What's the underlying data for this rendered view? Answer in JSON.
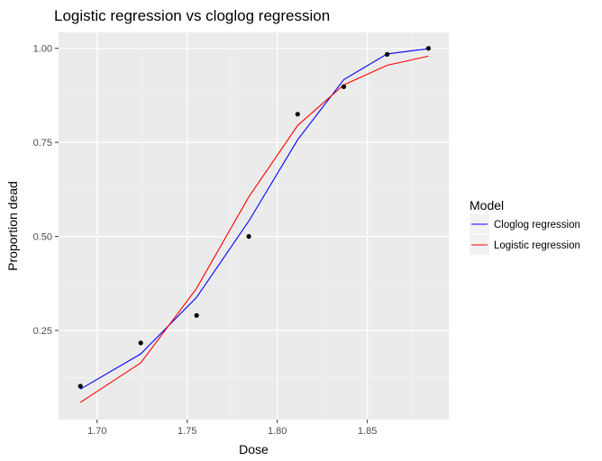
{
  "chart_data": {
    "type": "line",
    "title": "Logistic regression vs cloglog regression",
    "xlabel": "Dose",
    "ylabel": "Proportion dead",
    "xlim": [
      1.6786,
      1.8952
    ],
    "ylim": [
      0.0132,
      1.0423
    ],
    "x_ticks": [
      1.7,
      1.75,
      1.8,
      1.85
    ],
    "x_tick_labels": [
      "1.70",
      "1.75",
      "1.80",
      "1.85"
    ],
    "y_ticks": [
      0.25,
      0.5,
      0.75,
      1.0
    ],
    "y_tick_labels": [
      "0.25",
      "0.50",
      "0.75",
      "1.00"
    ],
    "grid": true,
    "background": "#ebebeb",
    "legend": {
      "title": "Model",
      "placement": "right"
    },
    "x": [
      1.6907,
      1.7242,
      1.7552,
      1.7842,
      1.8113,
      1.8369,
      1.861,
      1.8839
    ],
    "points": [
      0.102,
      0.217,
      0.29,
      0.5,
      0.825,
      0.898,
      0.984,
      1.0
    ],
    "series": [
      {
        "name": "Cloglog regression",
        "color": "#0000ff",
        "values": [
          0.094,
          0.188,
          0.338,
          0.541,
          0.757,
          0.917,
          0.985,
          0.999
        ]
      },
      {
        "name": "Logistic regression",
        "color": "#ff0000",
        "values": [
          0.059,
          0.164,
          0.362,
          0.605,
          0.795,
          0.903,
          0.955,
          0.979
        ]
      }
    ]
  }
}
